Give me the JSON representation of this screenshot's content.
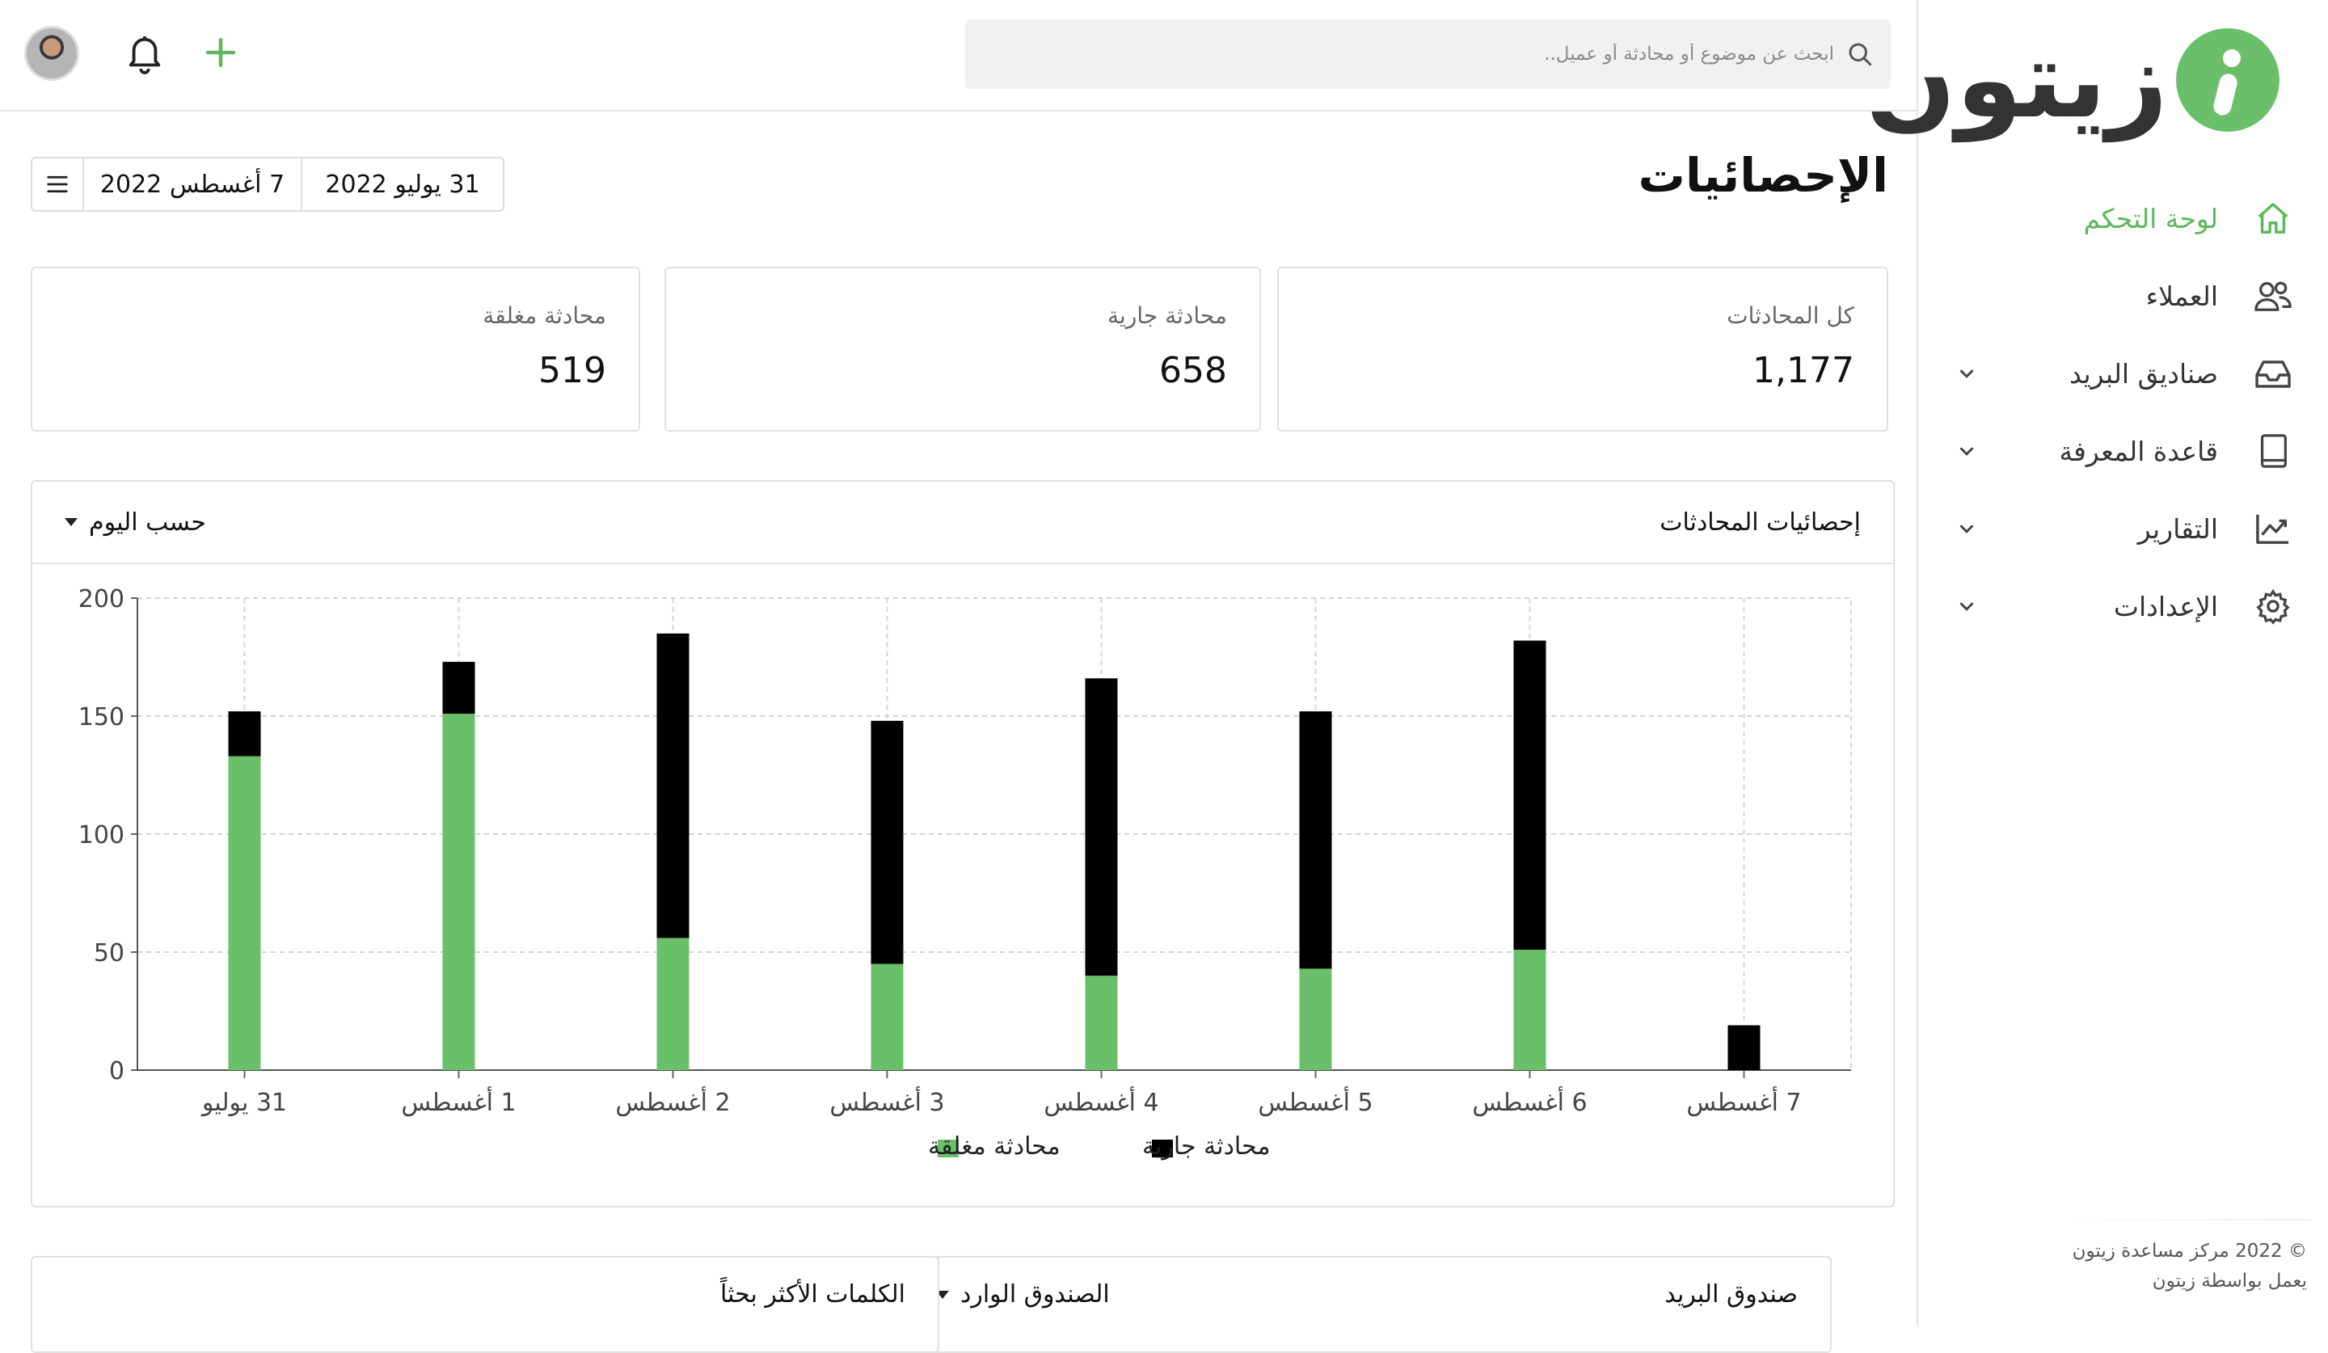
{
  "brand": {
    "name": "زيتون",
    "accent": "#5cb85c"
  },
  "topbar": {
    "search_placeholder": "ابحث عن موضوع أو محادثة أو عميل..",
    "icons": [
      "search-icon",
      "bell-icon",
      "plus-icon",
      "avatar"
    ]
  },
  "sidebar": {
    "items": [
      {
        "label": "لوحة التحكم",
        "icon": "home-icon",
        "active": true,
        "expandable": false
      },
      {
        "label": "العملاء",
        "icon": "users-icon",
        "active": false,
        "expandable": false
      },
      {
        "label": "صناديق البريد",
        "icon": "inbox-icon",
        "active": false,
        "expandable": true
      },
      {
        "label": "قاعدة المعرفة",
        "icon": "book-icon",
        "active": false,
        "expandable": true
      },
      {
        "label": "التقارير",
        "icon": "chart-line-icon",
        "active": false,
        "expandable": true
      },
      {
        "label": "الإعدادات",
        "icon": "gear-icon",
        "active": false,
        "expandable": true
      }
    ],
    "footer": {
      "copyright": "© 2022 مركز مساعدة زيتون",
      "powered": "يعمل بواسطة زيتون"
    }
  },
  "page": {
    "title": "الإحصائيات"
  },
  "date_range": {
    "from": "31 يوليو 2022",
    "to": "7 أغسطس 2022"
  },
  "stats": [
    {
      "label": "كل المحادثات",
      "value": "1,177"
    },
    {
      "label": "محادثة جارية",
      "value": "658"
    },
    {
      "label": "محادثة مغلقة",
      "value": "519"
    }
  ],
  "conversations_chart": {
    "title": "إحصائيات المحادثات",
    "group_by": "حسب اليوم"
  },
  "chart_data": {
    "type": "bar",
    "stacked": true,
    "categories": [
      "31 يوليو",
      "1 أغسطس",
      "2 أغسطس",
      "3 أغسطس",
      "4 أغسطس",
      "5 أغسطس",
      "6 أغسطس",
      "7 أغسطس"
    ],
    "series": [
      {
        "name": "محادثة مغلقة",
        "color": "#6abf69",
        "values": [
          133,
          151,
          56,
          45,
          40,
          43,
          51,
          0
        ]
      },
      {
        "name": "محادثة جارية",
        "color": "#000000",
        "values": [
          19,
          22,
          129,
          103,
          126,
          109,
          131,
          19
        ]
      }
    ],
    "ylim": [
      0,
      200
    ],
    "yticks": [
      0,
      50,
      100,
      150,
      200
    ],
    "grid": true,
    "legend": "bottom"
  },
  "bottom": {
    "mailbox": {
      "title": "صندوق البريد",
      "selected": "الصندوق الوارد"
    },
    "keywords": {
      "title": "الكلمات الأكثر بحثاً"
    }
  }
}
